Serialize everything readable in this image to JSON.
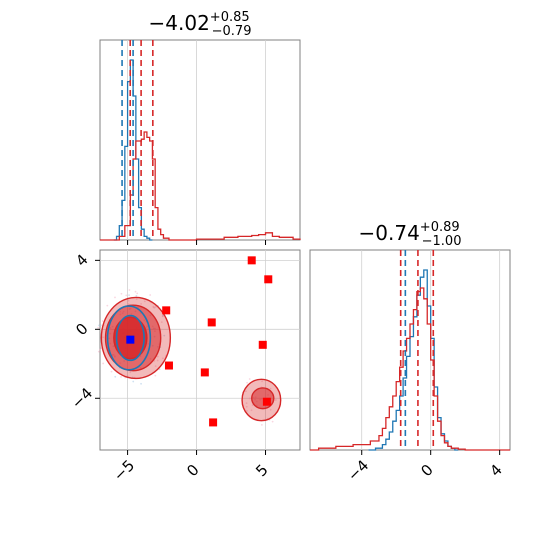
{
  "colors": {
    "blue": "#1f77b4",
    "red": "#d62728",
    "marker_red": "#ff0000",
    "marker_blue": "#0000ff",
    "grid": "#d0d0d0",
    "frame": "#808080"
  },
  "chart_data": [
    {
      "type": "histogram",
      "panel": "marginal-x",
      "title": {
        "value": "−4.02",
        "plus": "+0.85",
        "minus": "−0.79"
      },
      "xlim": [
        -7,
        7.5
      ],
      "grid": true,
      "series": [
        {
          "name": "",
          "color": "#1f77b4",
          "bins": [
            -6,
            -5.8,
            -5.6,
            -5.4,
            -5.2,
            -5.0,
            -4.8,
            -4.6,
            -4.4,
            -4.2,
            -4.0,
            -3.8,
            -3.6,
            -3.4,
            -3.2
          ],
          "heights": [
            0.0,
            0.02,
            0.08,
            0.22,
            0.52,
            0.88,
            1.0,
            0.8,
            0.45,
            0.18,
            0.06,
            0.02,
            0.01,
            0.0
          ],
          "quantile_lines": [
            -5.4,
            -4.6
          ]
        },
        {
          "name": "",
          "color": "#d62728",
          "bins": [
            -7,
            -6,
            -5.6,
            -5.2,
            -4.8,
            -4.6,
            -4.4,
            -4.2,
            -4.0,
            -3.8,
            -3.6,
            -3.4,
            -3.2,
            -3.0,
            -2.8,
            -2.6,
            -2.4,
            -2.0,
            0.0,
            2.0,
            3.0,
            4.0,
            4.5,
            5.0,
            5.5,
            6.0,
            7.0,
            7.5
          ],
          "heights": [
            0.0,
            0.0,
            0.02,
            0.08,
            0.25,
            0.45,
            0.55,
            0.55,
            0.56,
            0.6,
            0.57,
            0.55,
            0.45,
            0.18,
            0.06,
            0.03,
            0.01,
            0.0,
            0.005,
            0.015,
            0.02,
            0.025,
            0.03,
            0.04,
            0.02,
            0.015,
            0.005
          ],
          "quantile_lines": [
            -4.81,
            -4.02,
            -3.17
          ]
        }
      ],
      "xticks": [
        -5,
        0,
        5
      ],
      "show_tick_labels": false
    },
    {
      "type": "scatter",
      "panel": "joint",
      "xlim": [
        -7,
        7.5
      ],
      "ylim": [
        -7,
        4.6
      ],
      "grid": true,
      "xticks": [
        -5,
        0,
        5
      ],
      "yticks": [
        -4,
        0,
        4
      ],
      "red_markers": [
        [
          4,
          4
        ],
        [
          5.2,
          2.9
        ],
        [
          -2.2,
          1.1
        ],
        [
          1.1,
          0.4
        ],
        [
          -2,
          -2.1
        ],
        [
          0.6,
          -2.5
        ],
        [
          4.8,
          -0.9
        ],
        [
          5.1,
          -4.2
        ],
        [
          1.2,
          -5.4
        ]
      ],
      "blue_markers": [
        [
          -4.8,
          -0.6
        ]
      ],
      "red_contours": [
        {
          "center": [
            -4.4,
            -0.5
          ],
          "rx": 2.5,
          "ry": 2.35,
          "level": "outer"
        },
        {
          "center": [
            -4.6,
            -0.5
          ],
          "rx": 2.0,
          "ry": 1.9,
          "level": "mid"
        },
        {
          "center": [
            -4.8,
            -0.5
          ],
          "rx": 1.2,
          "ry": 1.2,
          "level": "inner"
        },
        {
          "center": [
            4.7,
            -4.1
          ],
          "rx": 1.4,
          "ry": 1.2,
          "level": "outer"
        },
        {
          "center": [
            4.8,
            -4.0
          ],
          "rx": 0.8,
          "ry": 0.6,
          "level": "mid"
        }
      ],
      "blue_contours": [
        {
          "center": [
            -4.9,
            -0.5
          ],
          "rx": 1.55,
          "ry": 1.85,
          "level": "outer"
        },
        {
          "center": [
            -4.8,
            -0.5
          ],
          "rx": 1.0,
          "ry": 1.3,
          "level": "inner"
        }
      ]
    },
    {
      "type": "histogram",
      "panel": "marginal-y",
      "title": {
        "value": "−0.74",
        "plus": "+0.89",
        "minus": "−1.00"
      },
      "xlim": [
        -7,
        4.6
      ],
      "grid": true,
      "xticks": [
        -4,
        0,
        4
      ],
      "series": [
        {
          "name": "",
          "color": "#1f77b4",
          "bins": [
            -3.6,
            -3.2,
            -2.8,
            -2.6,
            -2.4,
            -2.2,
            -2.0,
            -1.8,
            -1.6,
            -1.4,
            -1.2,
            -1.0,
            -0.8,
            -0.6,
            -0.4,
            -0.2,
            0.0,
            0.2,
            0.4,
            0.6,
            0.8,
            1.0,
            1.2,
            1.4,
            1.6
          ],
          "heights": [
            0.0,
            0.01,
            0.03,
            0.06,
            0.1,
            0.16,
            0.22,
            0.3,
            0.4,
            0.52,
            0.63,
            0.74,
            0.86,
            0.96,
            1.0,
            0.8,
            0.62,
            0.35,
            0.18,
            0.09,
            0.05,
            0.02,
            0.01,
            0.0
          ],
          "quantile_lines": [
            -1.47
          ]
        },
        {
          "name": "",
          "color": "#d62728",
          "bins": [
            -7,
            -6.5,
            -5.5,
            -4.5,
            -3.5,
            -3.0,
            -2.8,
            -2.6,
            -2.4,
            -2.2,
            -2.0,
            -1.8,
            -1.6,
            -1.4,
            -1.2,
            -1.0,
            -0.8,
            -0.6,
            -0.4,
            -0.2,
            0.0,
            0.2,
            0.4,
            0.6,
            0.8,
            1.0,
            1.2,
            1.6,
            2.0,
            4.6
          ],
          "heights": [
            0.0,
            0.01,
            0.02,
            0.03,
            0.05,
            0.08,
            0.12,
            0.18,
            0.24,
            0.3,
            0.38,
            0.46,
            0.55,
            0.62,
            0.7,
            0.78,
            0.88,
            0.9,
            0.84,
            0.7,
            0.5,
            0.3,
            0.16,
            0.08,
            0.04,
            0.02,
            0.01,
            0.005,
            0.0
          ],
          "quantile_lines": [
            -1.74,
            -0.74,
            0.15
          ]
        }
      ]
    }
  ]
}
